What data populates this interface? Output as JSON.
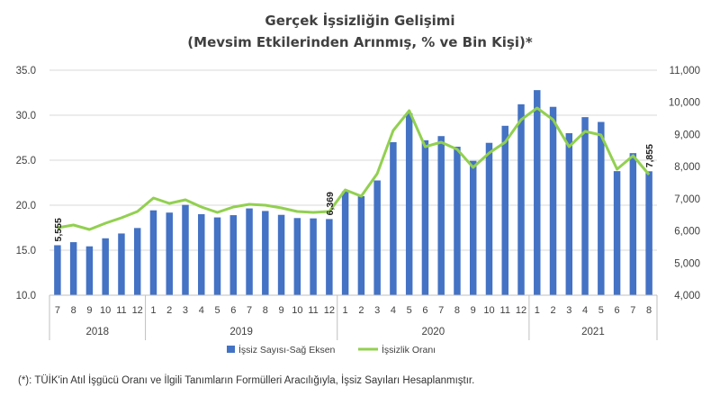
{
  "chart_data": {
    "type": "bar+line",
    "title": "Gerçek İşsizliğin Gelişimi",
    "subtitle": "(Mevsim Etkilerinden Arınmış, % ve Bin Kişi)*",
    "x_months": [
      "7",
      "8",
      "9",
      "10",
      "11",
      "12",
      "1",
      "2",
      "3",
      "4",
      "5",
      "6",
      "7",
      "8",
      "9",
      "10",
      "11",
      "12",
      "1",
      "2",
      "3",
      "4",
      "5",
      "6",
      "7",
      "8",
      "9",
      "10",
      "11",
      "12",
      "1",
      "2",
      "3",
      "4",
      "5",
      "6",
      "7",
      "8"
    ],
    "years": [
      {
        "label": "2018",
        "start": 0,
        "end": 5
      },
      {
        "label": "2019",
        "start": 6,
        "end": 17
      },
      {
        "label": "2020",
        "start": 18,
        "end": 29
      },
      {
        "label": "2021",
        "start": 30,
        "end": 37
      }
    ],
    "left_axis": {
      "min": 10,
      "max": 35,
      "step": 5,
      "ticks": [
        "10.0",
        "15.0",
        "20.0",
        "25.0",
        "30.0",
        "35.0"
      ]
    },
    "right_axis": {
      "min": 4000,
      "max": 11000,
      "step": 1000,
      "ticks": [
        "4,000",
        "5,000",
        "6,000",
        "7,000",
        "8,000",
        "9,000",
        "10,000",
        "11,000"
      ]
    },
    "series": [
      {
        "name": "İşsiz Sayısı-Sağ Eksen",
        "type": "bar",
        "axis": "right",
        "color": "#4472C4",
        "values": [
          5555,
          5650,
          5520,
          5770,
          5920,
          6090,
          6640,
          6570,
          6810,
          6520,
          6420,
          6490,
          6700,
          6620,
          6500,
          6400,
          6390,
          6369,
          7230,
          7080,
          7570,
          8760,
          9660,
          8820,
          8950,
          8620,
          8180,
          8740,
          9270,
          9940,
          10380,
          9860,
          9040,
          9540,
          9390,
          7860,
          8420,
          7855
        ]
      },
      {
        "name": "İşsizlik Oranı",
        "type": "line",
        "axis": "left",
        "color": "#92D050",
        "values": [
          17.5,
          17.8,
          17.3,
          18.0,
          18.6,
          19.3,
          20.8,
          20.2,
          20.6,
          19.8,
          19.2,
          19.8,
          20.1,
          20.0,
          19.7,
          19.3,
          19.2,
          19.3,
          21.7,
          21.0,
          23.5,
          28.3,
          30.5,
          26.5,
          27.0,
          26.2,
          24.2,
          25.8,
          27.0,
          29.5,
          30.8,
          29.5,
          26.5,
          28.2,
          27.8,
          24.0,
          25.5,
          23.4
        ]
      }
    ],
    "annotations": [
      {
        "index": 0,
        "text": "5,555"
      },
      {
        "index": 17,
        "text": "6,369"
      },
      {
        "index": 37,
        "text": "7,855"
      }
    ],
    "legend_position": "bottom",
    "grid": "horizontal"
  },
  "footnote": "(*): TÜİK'in Atıl İşgücü Oranı ve İlgili Tanımların Formülleri Aracılığıyla, İşsiz Sayıları Hesaplanmıştır."
}
